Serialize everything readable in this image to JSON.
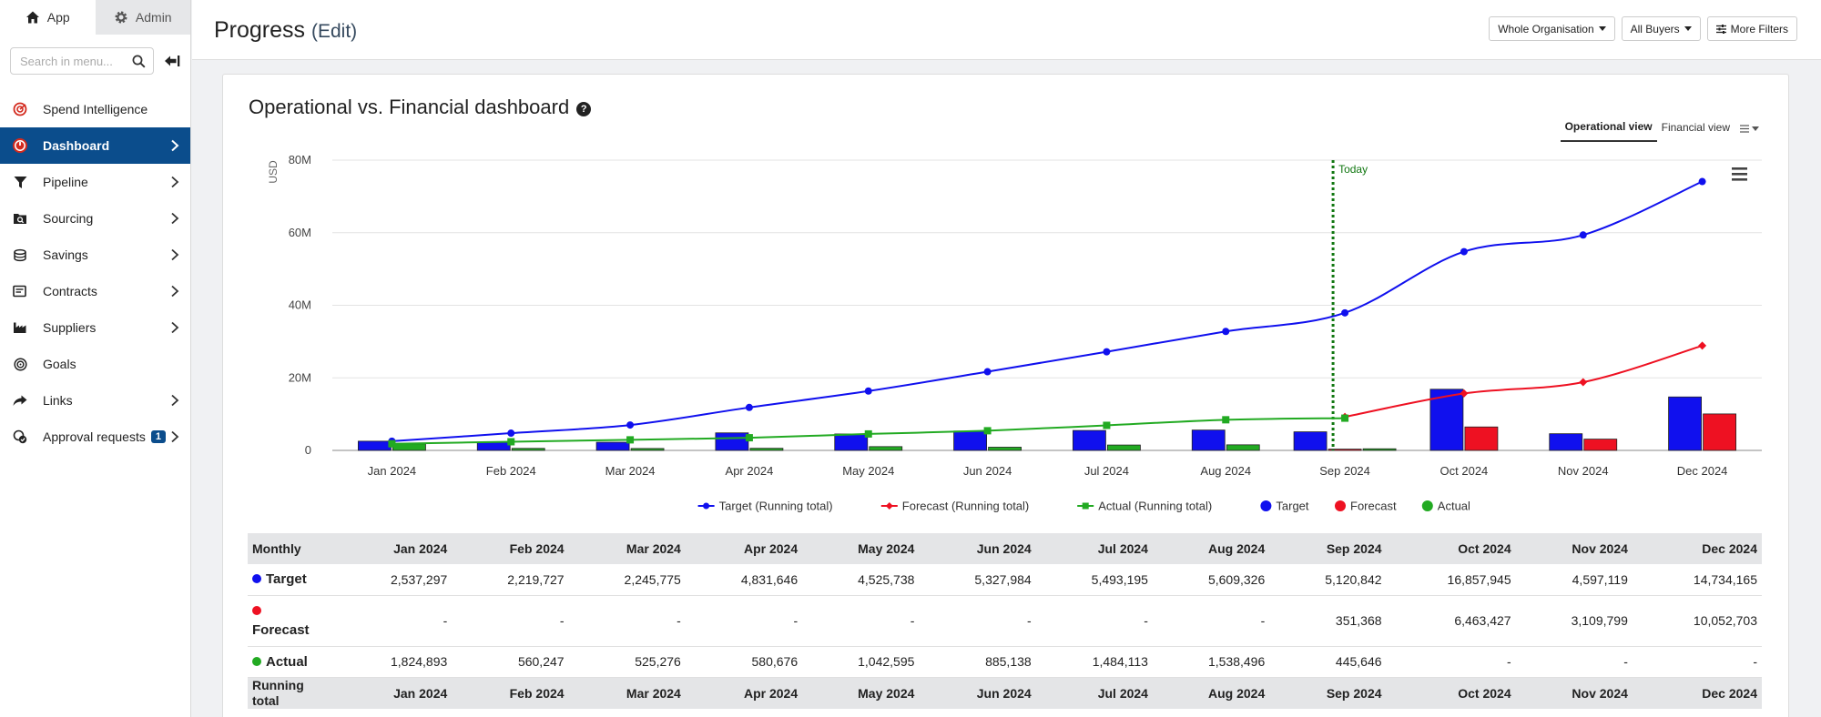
{
  "sidebar": {
    "tabs": [
      {
        "label": "App",
        "icon": "home-icon"
      },
      {
        "label": "Admin",
        "icon": "gear-icon"
      }
    ],
    "search_placeholder": "Search in menu...",
    "items": [
      {
        "label": "Spend Intelligence",
        "icon": "spend-intelligence-icon",
        "has_chevron": false
      },
      {
        "label": "Dashboard",
        "icon": "dashboard-gauge-icon",
        "has_chevron": true,
        "active": true
      },
      {
        "label": "Pipeline",
        "icon": "funnel-icon",
        "has_chevron": true
      },
      {
        "label": "Sourcing",
        "icon": "sourcing-icon",
        "has_chevron": true
      },
      {
        "label": "Savings",
        "icon": "savings-coins-icon",
        "has_chevron": true
      },
      {
        "label": "Contracts",
        "icon": "contracts-icon",
        "has_chevron": true
      },
      {
        "label": "Suppliers",
        "icon": "factory-icon",
        "has_chevron": true
      },
      {
        "label": "Goals",
        "icon": "target-icon",
        "has_chevron": false
      },
      {
        "label": "Links",
        "icon": "share-arrow-icon",
        "has_chevron": true
      },
      {
        "label": "Approval requests",
        "icon": "approval-icon",
        "has_chevron": true,
        "badge": "1"
      }
    ]
  },
  "header": {
    "title": "Progress",
    "edit_label": "(Edit)",
    "filters": [
      "Whole Organisation",
      "All Buyers",
      "More Filters"
    ]
  },
  "card": {
    "title": "Operational vs. Financial dashboard",
    "view_tabs": [
      "Operational view",
      "Financial view"
    ]
  },
  "colors": {
    "target": "#1010ee",
    "forecast": "#ee1122",
    "actual": "#22aa22",
    "today_line": "#117711",
    "sidebar_active": "#0b4d8c"
  },
  "chart_data": {
    "type": "bar",
    "ylabel": "USD",
    "ylim": [
      0,
      80000000
    ],
    "yticks": [
      "0",
      "20M",
      "40M",
      "60M",
      "80M"
    ],
    "categories": [
      "Jan 2024",
      "Feb 2024",
      "Mar 2024",
      "Apr 2024",
      "May 2024",
      "Jun 2024",
      "Jul 2024",
      "Aug 2024",
      "Sep 2024",
      "Oct 2024",
      "Nov 2024",
      "Dec 2024"
    ],
    "today_label": "Today",
    "series": [
      {
        "name": "Target",
        "kind": "bar",
        "values": [
          2537297,
          2219727,
          2245775,
          4831646,
          4525738,
          5327984,
          5493195,
          5609326,
          5120842,
          16857945,
          4597119,
          14734165
        ]
      },
      {
        "name": "Forecast",
        "kind": "bar",
        "values": [
          null,
          null,
          null,
          null,
          null,
          null,
          null,
          null,
          351368,
          6463427,
          3109799,
          10052703
        ]
      },
      {
        "name": "Actual",
        "kind": "bar",
        "values": [
          1824893,
          560247,
          525276,
          580676,
          1042595,
          885138,
          1484113,
          1538496,
          445646,
          null,
          null,
          null
        ]
      },
      {
        "name": "Target (Running total)",
        "kind": "line",
        "values": [
          2537297,
          4757024,
          7002799,
          11834445,
          16360183,
          21688167,
          27181362,
          32790688,
          37911530,
          54769475,
          59366594,
          74100759
        ]
      },
      {
        "name": "Forecast (Running total)",
        "kind": "line",
        "values": [
          null,
          null,
          null,
          null,
          null,
          null,
          null,
          null,
          9234538,
          15697965,
          18807764,
          28860467
        ]
      },
      {
        "name": "Actual (Running total)",
        "kind": "line",
        "values": [
          1824893,
          2385140,
          2910416,
          3491092,
          4533687,
          5418825,
          6902938,
          8441434,
          8887080,
          null,
          null,
          null
        ]
      }
    ],
    "legend": [
      "Target (Running total)",
      "Forecast (Running total)",
      "Actual (Running total)",
      "Target",
      "Forecast",
      "Actual"
    ],
    "legend_placement": "bottom"
  },
  "table": {
    "header_label": "Monthly",
    "months": [
      "Jan 2024",
      "Feb 2024",
      "Mar 2024",
      "Apr 2024",
      "May 2024",
      "Jun 2024",
      "Jul 2024",
      "Aug 2024",
      "Sep 2024",
      "Oct 2024",
      "Nov 2024",
      "Dec 2024"
    ],
    "rows": [
      {
        "label": "Target",
        "cells": [
          "2,537,297",
          "2,219,727",
          "2,245,775",
          "4,831,646",
          "4,525,738",
          "5,327,984",
          "5,493,195",
          "5,609,326",
          "5,120,842",
          "16,857,945",
          "4,597,119",
          "14,734,165"
        ]
      },
      {
        "label": "Forecast",
        "cells": [
          "-",
          "-",
          "-",
          "-",
          "-",
          "-",
          "-",
          "-",
          "351,368",
          "6,463,427",
          "3,109,799",
          "10,052,703"
        ]
      },
      {
        "label": "Actual",
        "cells": [
          "1,824,893",
          "560,247",
          "525,276",
          "580,676",
          "1,042,595",
          "885,138",
          "1,484,113",
          "1,538,496",
          "445,646",
          "-",
          "-",
          "-"
        ]
      }
    ],
    "running_total_label": "Running total"
  }
}
